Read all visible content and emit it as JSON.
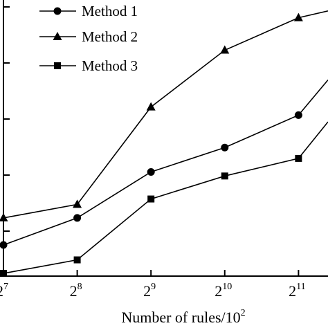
{
  "chart_data": {
    "type": "line",
    "x_ticks": [
      {
        "base": "2",
        "exp": "7"
      },
      {
        "base": "2",
        "exp": "8"
      },
      {
        "base": "2",
        "exp": "9"
      },
      {
        "base": "2",
        "exp": "10"
      },
      {
        "base": "2",
        "exp": "11"
      }
    ],
    "x": [
      7,
      8,
      9,
      10,
      11,
      11.4
    ],
    "xlabel": {
      "text": "Number of rules/10",
      "sup": "2"
    },
    "x_range": [
      7,
      11.4
    ],
    "y_range": [
      0,
      1
    ],
    "y_ticks_labeled": false,
    "grid": false,
    "legend_position": "top-left",
    "colors": {
      "line": "#000000",
      "marker": "#000000",
      "background": "#ffffff"
    },
    "series": [
      {
        "name": "Method 1",
        "marker": "circle",
        "values": [
          0.115,
          0.215,
          0.385,
          0.475,
          0.595,
          0.725
        ]
      },
      {
        "name": "Method 2",
        "marker": "triangle",
        "values": [
          0.215,
          0.265,
          0.625,
          0.835,
          0.955,
          0.98
        ]
      },
      {
        "name": "Method 3",
        "marker": "square",
        "values": [
          0.01,
          0.06,
          0.285,
          0.37,
          0.435,
          0.57
        ]
      }
    ]
  }
}
